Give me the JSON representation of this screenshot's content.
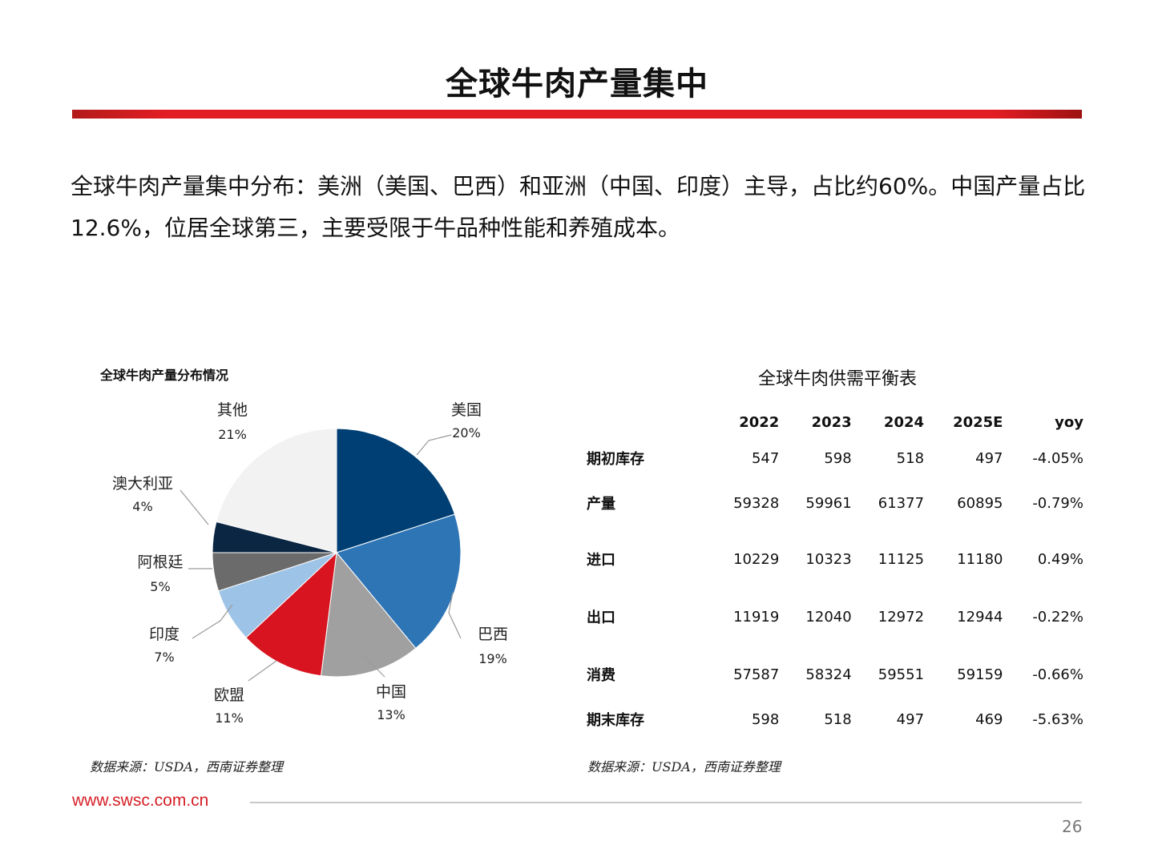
{
  "slide": {
    "title": "全球牛肉产量集中",
    "summary_line1": "全球牛肉产量集中分布：美洲（美国、巴西）和亚洲（中国、印度）主导，占比约60%。中国产量占比",
    "summary_line2": "12.6%，位居全球第三，主要受限于牛品种性能和养殖成本。",
    "footer_url": "www.swsc.com.cn",
    "page_number": "26",
    "accent_color": "#e31d24"
  },
  "chart_data": [
    {
      "type": "pie",
      "title": "全球牛肉产量分布情况",
      "slices": [
        {
          "label": "美国",
          "value": 20,
          "value_label": "20%",
          "color": "#003f73"
        },
        {
          "label": "巴西",
          "value": 19,
          "value_label": "19%",
          "color": "#2e75b6"
        },
        {
          "label": "中国",
          "value": 13,
          "value_label": "13%",
          "color": "#a0a0a0"
        },
        {
          "label": "欧盟",
          "value": 11,
          "value_label": "11%",
          "color": "#d7141f"
        },
        {
          "label": "印度",
          "value": 7,
          "value_label": "7%",
          "color": "#9dc3e6"
        },
        {
          "label": "阿根廷",
          "value": 5,
          "value_label": "5%",
          "color": "#6b6b6b"
        },
        {
          "label": "澳大利亚",
          "value": 4,
          "value_label": "4%",
          "color": "#0b2642"
        },
        {
          "label": "其他",
          "value": 21,
          "value_label": "21%",
          "color": "#f2f2f2"
        }
      ],
      "source": "数据来源：USDA，西南证券整理"
    },
    {
      "type": "table",
      "title": "全球牛肉供需平衡表",
      "columns": [
        "",
        "2022",
        "2023",
        "2024",
        "2025E",
        "yoy"
      ],
      "rows": [
        {
          "label": "期初库存",
          "cells": [
            "547",
            "598",
            "518",
            "497",
            "-4.05%"
          ]
        },
        {
          "label": "产量",
          "cells": [
            "59328",
            "59961",
            "61377",
            "60895",
            "-0.79%"
          ]
        },
        {
          "label": "进口",
          "cells": [
            "10229",
            "10323",
            "11125",
            "11180",
            "0.49%"
          ]
        },
        {
          "label": "出口",
          "cells": [
            "11919",
            "12040",
            "12972",
            "12944",
            "-0.22%"
          ]
        },
        {
          "label": "消费",
          "cells": [
            "57587",
            "58324",
            "59551",
            "59159",
            "-0.66%"
          ]
        },
        {
          "label": "期末库存",
          "cells": [
            "598",
            "518",
            "497",
            "469",
            "-5.63%"
          ]
        }
      ],
      "source": "数据来源：USDA，西南证券整理"
    }
  ]
}
